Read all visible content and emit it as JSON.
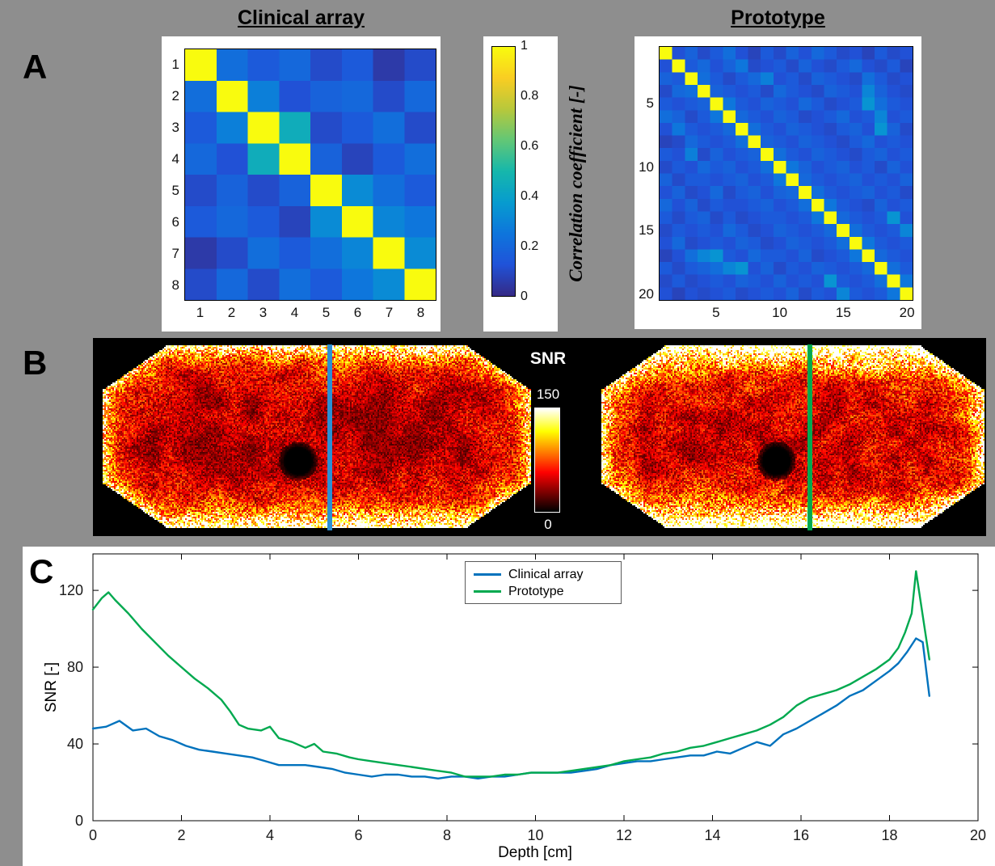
{
  "page": {
    "bg": "#8e8e8e"
  },
  "panels": {
    "a_label": "A",
    "b_label": "B",
    "c_label": "C"
  },
  "panel_a": {
    "colorbar": {
      "label": "Correlation coefficient [-]",
      "ticks": [
        0,
        0.2,
        0.4,
        0.6,
        0.8,
        1
      ]
    }
  },
  "panel_b": {
    "colorbar_title": "SNR",
    "colorbar_max": "150",
    "colorbar_min": "0",
    "left_marker_color": "#2b8fd4",
    "right_marker_color": "#00a94f"
  },
  "chart_data": [
    {
      "type": "heatmap",
      "title": "Clinical array",
      "x_ticks": [
        1,
        2,
        3,
        4,
        5,
        6,
        7,
        8
      ],
      "y_ticks": [
        1,
        2,
        3,
        4,
        5,
        6,
        7,
        8
      ],
      "zlim": [
        0,
        1
      ],
      "colormap": "parula",
      "values": [
        [
          1.0,
          0.22,
          0.15,
          0.2,
          0.1,
          0.15,
          0.05,
          0.1
        ],
        [
          0.22,
          1.0,
          0.28,
          0.12,
          0.18,
          0.2,
          0.1,
          0.2
        ],
        [
          0.15,
          0.28,
          1.0,
          0.45,
          0.1,
          0.15,
          0.22,
          0.1
        ],
        [
          0.2,
          0.12,
          0.45,
          1.0,
          0.18,
          0.08,
          0.15,
          0.22
        ],
        [
          0.1,
          0.18,
          0.1,
          0.18,
          1.0,
          0.32,
          0.22,
          0.15
        ],
        [
          0.15,
          0.2,
          0.15,
          0.08,
          0.32,
          1.0,
          0.3,
          0.25
        ],
        [
          0.05,
          0.1,
          0.22,
          0.15,
          0.22,
          0.3,
          1.0,
          0.32
        ],
        [
          0.1,
          0.2,
          0.1,
          0.22,
          0.15,
          0.25,
          0.32,
          1.0
        ]
      ]
    },
    {
      "type": "heatmap",
      "title": "Prototype",
      "x_ticks": [
        5,
        10,
        15,
        20
      ],
      "y_ticks": [
        5,
        10,
        15,
        20
      ],
      "zlim": [
        0,
        1
      ],
      "colormap": "parula",
      "values": [
        [
          1.0,
          0.12,
          0.18,
          0.1,
          0.15,
          0.22,
          0.12,
          0.08,
          0.15,
          0.1,
          0.18,
          0.12,
          0.2,
          0.15,
          0.1,
          0.12,
          0.08,
          0.15,
          0.1,
          0.12
        ],
        [
          0.12,
          1.0,
          0.15,
          0.2,
          0.12,
          0.18,
          0.25,
          0.1,
          0.12,
          0.15,
          0.1,
          0.18,
          0.12,
          0.1,
          0.15,
          0.2,
          0.12,
          0.1,
          0.15,
          0.08
        ],
        [
          0.18,
          0.15,
          1.0,
          0.22,
          0.15,
          0.1,
          0.15,
          0.2,
          0.28,
          0.12,
          0.15,
          0.1,
          0.18,
          0.15,
          0.12,
          0.1,
          0.22,
          0.15,
          0.1,
          0.12
        ],
        [
          0.1,
          0.2,
          0.22,
          1.0,
          0.18,
          0.15,
          0.12,
          0.15,
          0.1,
          0.2,
          0.15,
          0.12,
          0.1,
          0.18,
          0.15,
          0.12,
          0.3,
          0.18,
          0.12,
          0.1
        ],
        [
          0.15,
          0.12,
          0.15,
          0.18,
          1.0,
          0.25,
          0.15,
          0.12,
          0.18,
          0.15,
          0.12,
          0.2,
          0.15,
          0.1,
          0.12,
          0.15,
          0.35,
          0.22,
          0.15,
          0.12
        ],
        [
          0.22,
          0.18,
          0.1,
          0.15,
          0.25,
          1.0,
          0.2,
          0.15,
          0.12,
          0.18,
          0.15,
          0.1,
          0.12,
          0.15,
          0.2,
          0.12,
          0.15,
          0.3,
          0.12,
          0.15
        ],
        [
          0.12,
          0.25,
          0.15,
          0.12,
          0.15,
          0.2,
          1.0,
          0.22,
          0.15,
          0.12,
          0.18,
          0.15,
          0.12,
          0.1,
          0.15,
          0.18,
          0.12,
          0.35,
          0.18,
          0.1
        ],
        [
          0.08,
          0.1,
          0.2,
          0.15,
          0.12,
          0.15,
          0.22,
          1.0,
          0.18,
          0.15,
          0.12,
          0.18,
          0.15,
          0.12,
          0.1,
          0.15,
          0.2,
          0.12,
          0.15,
          0.12
        ],
        [
          0.15,
          0.12,
          0.28,
          0.1,
          0.18,
          0.12,
          0.15,
          0.18,
          1.0,
          0.22,
          0.15,
          0.12,
          0.18,
          0.15,
          0.12,
          0.1,
          0.15,
          0.18,
          0.12,
          0.15
        ],
        [
          0.1,
          0.15,
          0.12,
          0.2,
          0.15,
          0.18,
          0.12,
          0.15,
          0.22,
          1.0,
          0.25,
          0.18,
          0.12,
          0.15,
          0.18,
          0.12,
          0.15,
          0.1,
          0.18,
          0.12
        ],
        [
          0.18,
          0.1,
          0.15,
          0.15,
          0.12,
          0.15,
          0.18,
          0.12,
          0.15,
          0.25,
          1.0,
          0.2,
          0.15,
          0.12,
          0.15,
          0.18,
          0.12,
          0.15,
          0.12,
          0.18
        ],
        [
          0.12,
          0.18,
          0.1,
          0.12,
          0.2,
          0.1,
          0.15,
          0.18,
          0.12,
          0.18,
          0.2,
          1.0,
          0.22,
          0.15,
          0.12,
          0.15,
          0.18,
          0.12,
          0.15,
          0.1
        ],
        [
          0.2,
          0.12,
          0.18,
          0.1,
          0.15,
          0.12,
          0.12,
          0.15,
          0.18,
          0.12,
          0.15,
          0.22,
          1.0,
          0.25,
          0.15,
          0.12,
          0.1,
          0.18,
          0.12,
          0.15
        ],
        [
          0.15,
          0.1,
          0.15,
          0.18,
          0.1,
          0.15,
          0.1,
          0.12,
          0.15,
          0.15,
          0.12,
          0.15,
          0.25,
          1.0,
          0.2,
          0.15,
          0.12,
          0.15,
          0.35,
          0.12
        ],
        [
          0.1,
          0.15,
          0.12,
          0.15,
          0.12,
          0.2,
          0.15,
          0.1,
          0.12,
          0.18,
          0.15,
          0.12,
          0.15,
          0.2,
          1.0,
          0.22,
          0.15,
          0.12,
          0.15,
          0.3
        ],
        [
          0.12,
          0.2,
          0.1,
          0.12,
          0.15,
          0.12,
          0.18,
          0.15,
          0.1,
          0.12,
          0.18,
          0.15,
          0.12,
          0.15,
          0.22,
          1.0,
          0.25,
          0.15,
          0.12,
          0.15
        ],
        [
          0.08,
          0.12,
          0.22,
          0.3,
          0.35,
          0.15,
          0.12,
          0.2,
          0.15,
          0.15,
          0.12,
          0.18,
          0.1,
          0.12,
          0.15,
          0.25,
          1.0,
          0.2,
          0.15,
          0.12
        ],
        [
          0.15,
          0.1,
          0.15,
          0.18,
          0.22,
          0.3,
          0.35,
          0.12,
          0.18,
          0.1,
          0.15,
          0.12,
          0.18,
          0.15,
          0.12,
          0.15,
          0.2,
          1.0,
          0.22,
          0.15
        ],
        [
          0.1,
          0.15,
          0.1,
          0.12,
          0.15,
          0.12,
          0.18,
          0.15,
          0.12,
          0.18,
          0.12,
          0.15,
          0.12,
          0.35,
          0.15,
          0.12,
          0.15,
          0.22,
          1.0,
          0.25
        ],
        [
          0.12,
          0.08,
          0.12,
          0.1,
          0.12,
          0.15,
          0.1,
          0.12,
          0.15,
          0.12,
          0.18,
          0.1,
          0.15,
          0.12,
          0.3,
          0.15,
          0.12,
          0.15,
          0.25,
          1.0
        ]
      ]
    },
    {
      "type": "line",
      "xlabel": "Depth [cm]",
      "ylabel": "SNR [-]",
      "xlim": [
        0,
        20
      ],
      "ylim": [
        0,
        139
      ],
      "x_ticks": [
        0,
        2,
        4,
        6,
        8,
        10,
        12,
        14,
        16,
        18,
        20
      ],
      "y_ticks": [
        0,
        40,
        80,
        120
      ],
      "legend_position": "top-center",
      "series": [
        {
          "name": "Clinical array",
          "color": "#0072bd",
          "points": [
            [
              0,
              48
            ],
            [
              0.3,
              49
            ],
            [
              0.6,
              52
            ],
            [
              0.9,
              47
            ],
            [
              1.2,
              48
            ],
            [
              1.5,
              44
            ],
            [
              1.8,
              42
            ],
            [
              2.1,
              39
            ],
            [
              2.4,
              37
            ],
            [
              2.7,
              36
            ],
            [
              3,
              35
            ],
            [
              3.3,
              34
            ],
            [
              3.6,
              33
            ],
            [
              3.9,
              31
            ],
            [
              4.2,
              29
            ],
            [
              4.5,
              29
            ],
            [
              4.8,
              29
            ],
            [
              5.1,
              28
            ],
            [
              5.4,
              27
            ],
            [
              5.7,
              25
            ],
            [
              6,
              24
            ],
            [
              6.3,
              23
            ],
            [
              6.6,
              24
            ],
            [
              6.9,
              24
            ],
            [
              7.2,
              23
            ],
            [
              7.5,
              23
            ],
            [
              7.8,
              22
            ],
            [
              8.1,
              23
            ],
            [
              8.4,
              23
            ],
            [
              8.7,
              22
            ],
            [
              9,
              23
            ],
            [
              9.3,
              23
            ],
            [
              9.6,
              24
            ],
            [
              9.9,
              25
            ],
            [
              10.2,
              25
            ],
            [
              10.5,
              25
            ],
            [
              10.8,
              25
            ],
            [
              11.1,
              26
            ],
            [
              11.4,
              27
            ],
            [
              11.7,
              29
            ],
            [
              12,
              30
            ],
            [
              12.3,
              31
            ],
            [
              12.6,
              31
            ],
            [
              12.9,
              32
            ],
            [
              13.2,
              33
            ],
            [
              13.5,
              34
            ],
            [
              13.8,
              34
            ],
            [
              14.1,
              36
            ],
            [
              14.4,
              35
            ],
            [
              14.7,
              38
            ],
            [
              15,
              41
            ],
            [
              15.3,
              39
            ],
            [
              15.6,
              45
            ],
            [
              15.9,
              48
            ],
            [
              16.2,
              52
            ],
            [
              16.5,
              56
            ],
            [
              16.8,
              60
            ],
            [
              17.1,
              65
            ],
            [
              17.4,
              68
            ],
            [
              17.7,
              73
            ],
            [
              18,
              78
            ],
            [
              18.2,
              82
            ],
            [
              18.4,
              88
            ],
            [
              18.6,
              95
            ],
            [
              18.75,
              93
            ],
            [
              18.9,
              65
            ]
          ]
        },
        {
          "name": "Prototype",
          "color": "#00a94f",
          "points": [
            [
              0,
              110
            ],
            [
              0.2,
              116
            ],
            [
              0.35,
              119
            ],
            [
              0.5,
              115
            ],
            [
              0.8,
              108
            ],
            [
              1.1,
              100
            ],
            [
              1.4,
              93
            ],
            [
              1.7,
              86
            ],
            [
              2,
              80
            ],
            [
              2.3,
              74
            ],
            [
              2.6,
              69
            ],
            [
              2.9,
              63
            ],
            [
              3.1,
              57
            ],
            [
              3.3,
              50
            ],
            [
              3.5,
              48
            ],
            [
              3.8,
              47
            ],
            [
              4,
              49
            ],
            [
              4.2,
              43
            ],
            [
              4.5,
              41
            ],
            [
              4.8,
              38
            ],
            [
              5,
              40
            ],
            [
              5.2,
              36
            ],
            [
              5.5,
              35
            ],
            [
              5.8,
              33
            ],
            [
              6,
              32
            ],
            [
              6.3,
              31
            ],
            [
              6.6,
              30
            ],
            [
              6.9,
              29
            ],
            [
              7.2,
              28
            ],
            [
              7.5,
              27
            ],
            [
              7.8,
              26
            ],
            [
              8.1,
              25
            ],
            [
              8.4,
              23
            ],
            [
              8.7,
              23
            ],
            [
              9,
              23
            ],
            [
              9.3,
              24
            ],
            [
              9.6,
              24
            ],
            [
              9.9,
              25
            ],
            [
              10.2,
              25
            ],
            [
              10.5,
              25
            ],
            [
              10.8,
              26
            ],
            [
              11.1,
              27
            ],
            [
              11.4,
              28
            ],
            [
              11.7,
              29
            ],
            [
              12,
              31
            ],
            [
              12.3,
              32
            ],
            [
              12.6,
              33
            ],
            [
              12.9,
              35
            ],
            [
              13.2,
              36
            ],
            [
              13.5,
              38
            ],
            [
              13.8,
              39
            ],
            [
              14.1,
              41
            ],
            [
              14.4,
              43
            ],
            [
              14.7,
              45
            ],
            [
              15,
              47
            ],
            [
              15.3,
              50
            ],
            [
              15.6,
              54
            ],
            [
              15.9,
              60
            ],
            [
              16.2,
              64
            ],
            [
              16.5,
              66
            ],
            [
              16.8,
              68
            ],
            [
              17.1,
              71
            ],
            [
              17.4,
              75
            ],
            [
              17.7,
              79
            ],
            [
              18,
              84
            ],
            [
              18.2,
              90
            ],
            [
              18.35,
              98
            ],
            [
              18.5,
              108
            ],
            [
              18.6,
              130
            ],
            [
              18.9,
              84
            ]
          ]
        }
      ]
    }
  ]
}
